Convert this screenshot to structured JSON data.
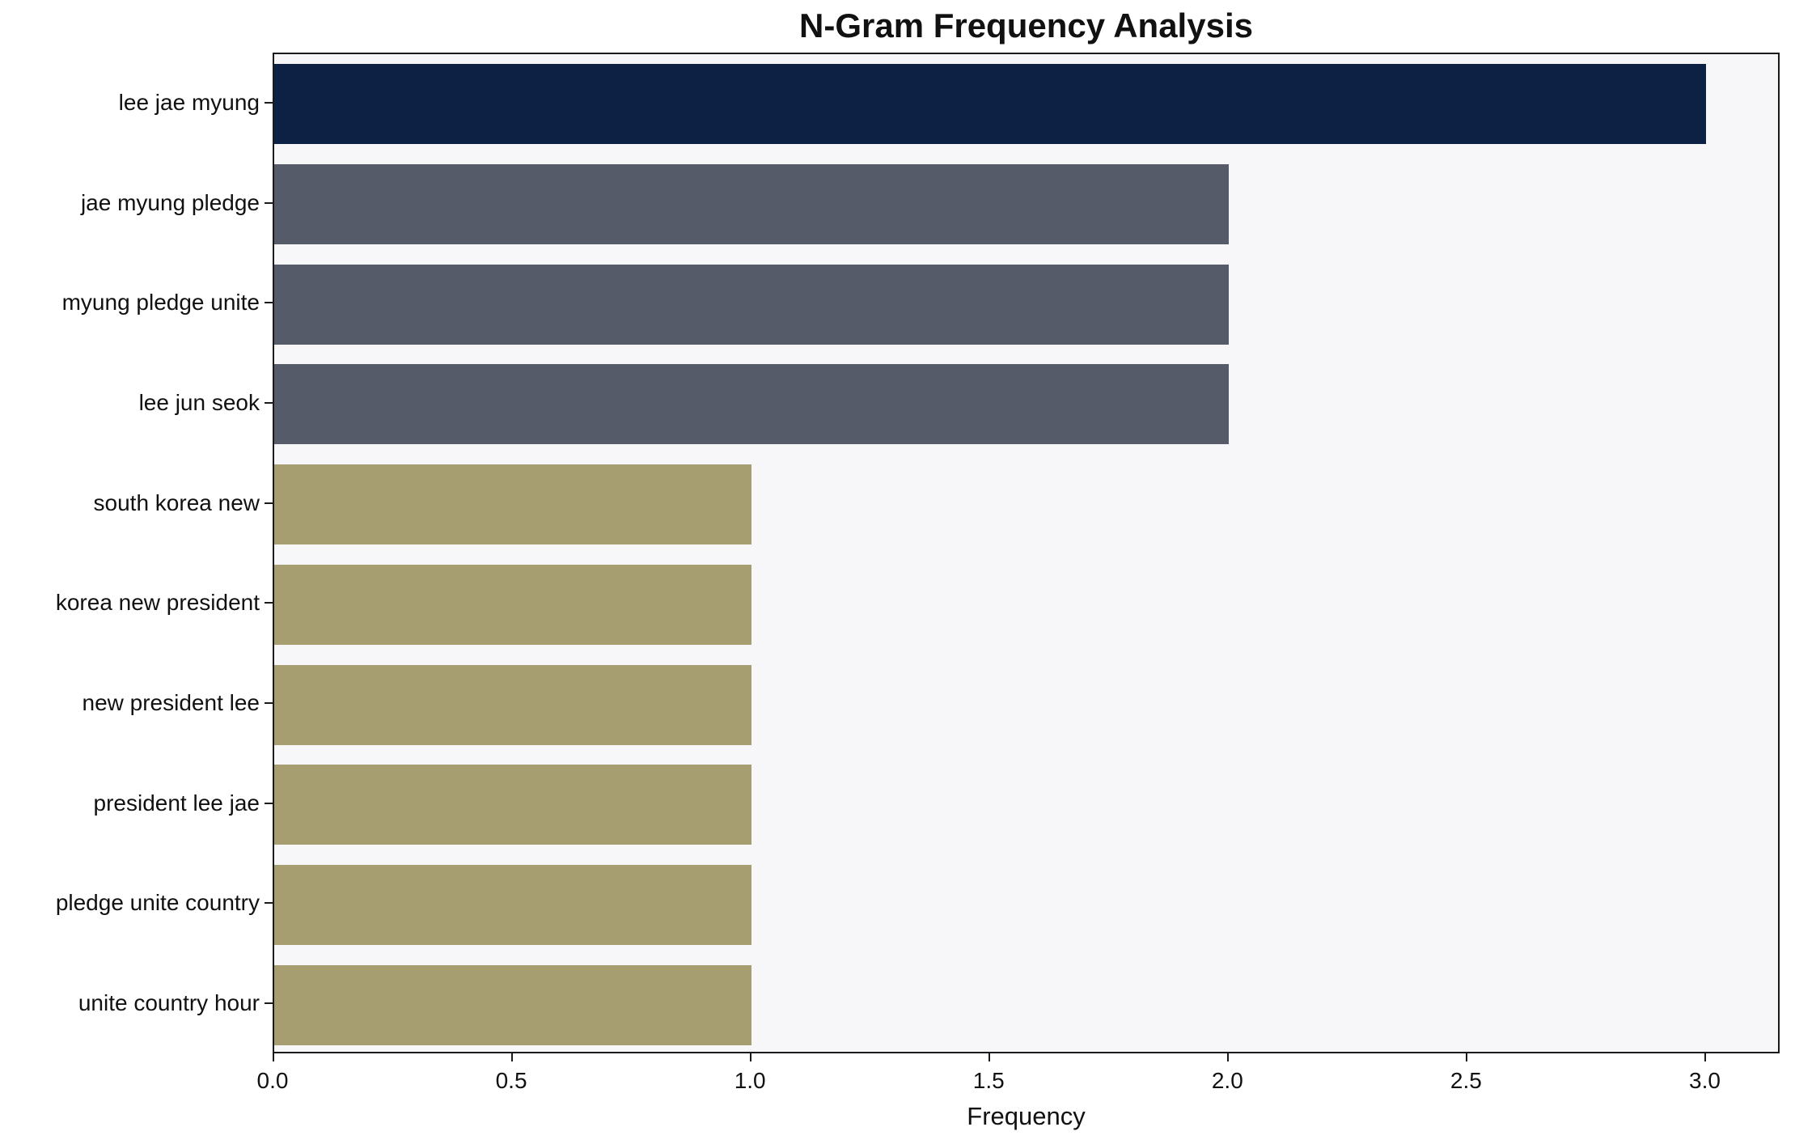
{
  "chart_data": {
    "type": "bar",
    "orientation": "horizontal",
    "title": "N-Gram Frequency Analysis",
    "xlabel": "Frequency",
    "ylabel": "",
    "categories": [
      "lee jae myung",
      "jae myung pledge",
      "myung pledge unite",
      "lee jun seok",
      "south korea new",
      "korea new president",
      "new president lee",
      "president lee jae",
      "pledge unite country",
      "unite country hour"
    ],
    "values": [
      3,
      2,
      2,
      2,
      1,
      1,
      1,
      1,
      1,
      1
    ],
    "bar_colors": [
      "#0d2145",
      "#565b6a",
      "#565b6a",
      "#565b6a",
      "#a69d71",
      "#a69d71",
      "#a69d71",
      "#a69d71",
      "#a69d71",
      "#a69d71"
    ],
    "xticks": [
      "0.0",
      "0.5",
      "1.0",
      "1.5",
      "2.0",
      "2.5",
      "3.0"
    ],
    "xtick_values": [
      0,
      0.5,
      1.0,
      1.5,
      2.0,
      2.5,
      3.0
    ],
    "xlim": [
      0,
      3.15
    ],
    "grid": false,
    "legend": null,
    "plot_background": "#f7f7f9",
    "figure_background": "#ffffff"
  }
}
